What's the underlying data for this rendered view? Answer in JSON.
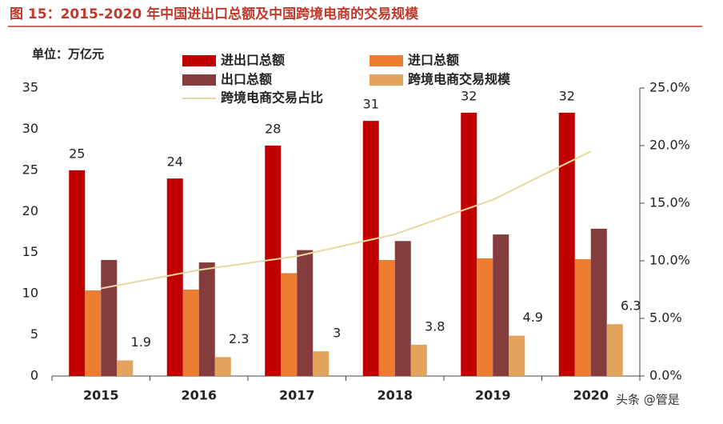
{
  "chart_data": {
    "type": "bar",
    "title": "图 15：2015-2020 年中国进出口总额及中国跨境电商的交易规模",
    "y_unit_label": "单位：万亿元",
    "watermark": "头条 @管是",
    "categories": [
      "2015",
      "2016",
      "2017",
      "2018",
      "2019",
      "2020"
    ],
    "series": [
      {
        "name": "进出口总额",
        "color": "#c00000",
        "values": [
          25,
          24,
          28,
          31,
          32,
          32
        ],
        "show_labels": true
      },
      {
        "name": "进口总额",
        "color": "#ed7d31",
        "values": [
          10.4,
          10.5,
          12.5,
          14.1,
          14.3,
          14.2
        ]
      },
      {
        "name": "出口总额",
        "color": "#843c3c",
        "values": [
          14.1,
          13.8,
          15.3,
          16.4,
          17.2,
          17.9
        ]
      },
      {
        "name": "跨境电商交易规模",
        "color": "#e2a35c",
        "values": [
          1.9,
          2.3,
          3,
          3.8,
          4.9,
          6.3
        ],
        "show_labels": true
      },
      {
        "name": "跨境电商交易占比",
        "color": "#e8d9a0",
        "type": "line",
        "axis": "y2",
        "values": [
          7.6,
          9.2,
          10.4,
          12.3,
          15.3,
          19.5
        ]
      }
    ],
    "ylim": [
      0,
      35
    ],
    "yticks": [
      0,
      5,
      10,
      15,
      20,
      25,
      30,
      35
    ],
    "y2lim": [
      0,
      25
    ],
    "y2ticks": [
      {
        "value": 0,
        "label": "0.0%"
      },
      {
        "value": 5,
        "label": "5.0%"
      },
      {
        "value": 10,
        "label": "10.0%"
      },
      {
        "value": 15,
        "label": "15.0%"
      },
      {
        "value": 20,
        "label": "20.0%"
      },
      {
        "value": 25,
        "label": "25.0%"
      }
    ],
    "grid": false
  }
}
